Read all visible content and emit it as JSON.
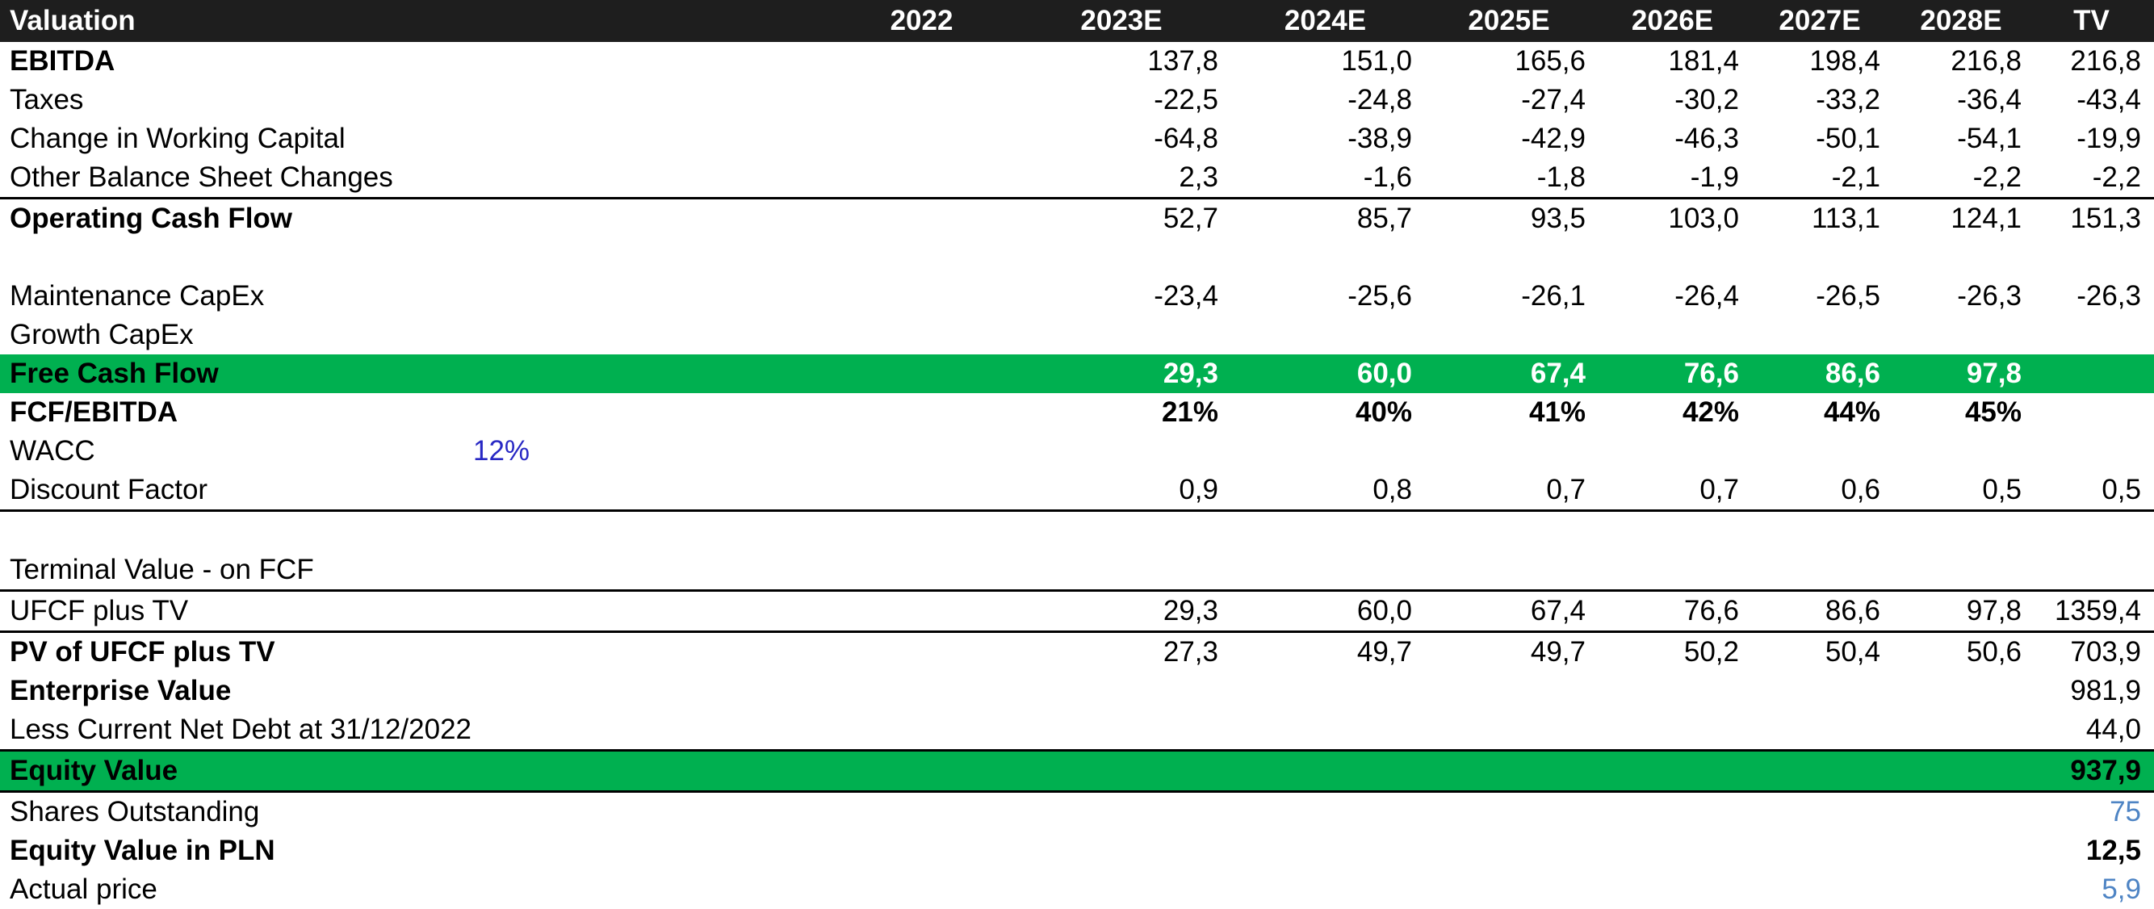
{
  "colors": {
    "header_bg": "#1e1e1e",
    "header_text": "#ffffff",
    "highlight_green": "#00b050",
    "accent_blue_dark": "#2828c4",
    "accent_blue_light": "#4e84c4",
    "text": "#000000"
  },
  "table": {
    "header": {
      "label": "Valuation",
      "columns": [
        "2022",
        "2023E",
        "2024E",
        "2025E",
        "2026E",
        "2027E",
        "2028E",
        "TV"
      ]
    },
    "rows": [
      {
        "key": "ebitda",
        "label": "EBITDA",
        "label_bold": true,
        "values": [
          "",
          "137,8",
          "151,0",
          "165,6",
          "181,4",
          "198,4",
          "216,8",
          "216,8"
        ]
      },
      {
        "key": "taxes",
        "label": "Taxes",
        "values": [
          "",
          "-22,5",
          "-24,8",
          "-27,4",
          "-30,2",
          "-33,2",
          "-36,4",
          "-43,4"
        ]
      },
      {
        "key": "change-in-working-capital",
        "label": "Change in Working Capital",
        "values": [
          "",
          "-64,8",
          "-38,9",
          "-42,9",
          "-46,3",
          "-50,1",
          "-54,1",
          "-19,9"
        ]
      },
      {
        "key": "other-balance-sheet-changes",
        "label": "Other Balance Sheet Changes",
        "border_bottom": true,
        "values": [
          "",
          "2,3",
          "-1,6",
          "-1,8",
          "-1,9",
          "-2,1",
          "-2,2",
          "-2,2"
        ]
      },
      {
        "key": "operating-cash-flow",
        "label": "Operating Cash Flow",
        "label_bold": true,
        "values": [
          "",
          "52,7",
          "85,7",
          "93,5",
          "103,0",
          "113,1",
          "124,1",
          "151,3"
        ]
      },
      {
        "key": "spacer-1",
        "label": "",
        "values": [
          "",
          "",
          "",
          "",
          "",
          "",
          "",
          ""
        ]
      },
      {
        "key": "maintenance-capex",
        "label": "Maintenance CapEx",
        "values": [
          "",
          "-23,4",
          "-25,6",
          "-26,1",
          "-26,4",
          "-26,5",
          "-26,3",
          "-26,3"
        ]
      },
      {
        "key": "growth-capex",
        "label": "Growth CapEx",
        "values": [
          "",
          "",
          "",
          "",
          "",
          "",
          "",
          ""
        ]
      },
      {
        "key": "free-cash-flow",
        "label": "Free Cash Flow",
        "label_bold": true,
        "row_bg": "green",
        "values_bold": true,
        "value_color": "white",
        "values": [
          "",
          "29,3",
          "60,0",
          "67,4",
          "76,6",
          "86,6",
          "97,8",
          ""
        ]
      },
      {
        "key": "fcf-ebitda",
        "label": "FCF/EBITDA",
        "label_bold": true,
        "values_bold": true,
        "values": [
          "",
          "21%",
          "40%",
          "41%",
          "42%",
          "44%",
          "45%",
          ""
        ]
      },
      {
        "key": "wacc",
        "label": "WACC",
        "inline_value": "12%",
        "values": [
          "",
          "",
          "",
          "",
          "",
          "",
          "",
          ""
        ]
      },
      {
        "key": "discount-factor",
        "label": "Discount Factor",
        "border_bottom": true,
        "values": [
          "",
          "0,9",
          "0,8",
          "0,7",
          "0,7",
          "0,6",
          "0,5",
          "0,5"
        ]
      },
      {
        "key": "spacer-2",
        "label": "",
        "values": [
          "",
          "",
          "",
          "",
          "",
          "",
          "",
          ""
        ]
      },
      {
        "key": "terminal-value",
        "label": "Terminal Value - on FCF",
        "border_bottom": true,
        "values": [
          "",
          "",
          "",
          "",
          "",
          "",
          "",
          ""
        ]
      },
      {
        "key": "ufcf-plus-tv",
        "label": "UFCF plus TV",
        "border_bottom": true,
        "values": [
          "",
          "29,3",
          "60,0",
          "67,4",
          "76,6",
          "86,6",
          "97,8",
          "1359,4"
        ]
      },
      {
        "key": "pv-of-ufcf-plus-tv",
        "label": "PV of UFCF plus TV",
        "label_bold": true,
        "values": [
          "",
          "27,3",
          "49,7",
          "49,7",
          "50,2",
          "50,4",
          "50,6",
          "703,9"
        ]
      },
      {
        "key": "enterprise-value",
        "label": "Enterprise Value",
        "label_bold": true,
        "values": [
          "",
          "",
          "",
          "",
          "",
          "",
          "",
          "981,9"
        ]
      },
      {
        "key": "less-current-net-debt",
        "label": "Less Current Net Debt at 31/12/2022",
        "values": [
          "",
          "",
          "",
          "",
          "",
          "",
          "",
          "44,0"
        ]
      },
      {
        "key": "equity-value",
        "label": "Equity Value",
        "label_bold": true,
        "values_bold": true,
        "row_bg": "green",
        "border_top": true,
        "border_bottom": true,
        "values": [
          "",
          "",
          "",
          "",
          "",
          "",
          "",
          "937,9"
        ]
      },
      {
        "key": "shares-outstanding",
        "label": "Shares Outstanding",
        "value_color": "blue",
        "values": [
          "",
          "",
          "",
          "",
          "",
          "",
          "",
          "75"
        ]
      },
      {
        "key": "equity-value-in-pln",
        "label": "Equity Value in PLN",
        "label_bold": true,
        "values_bold": true,
        "values": [
          "",
          "",
          "",
          "",
          "",
          "",
          "",
          "12,5"
        ]
      },
      {
        "key": "actual-price",
        "label": "Actual price",
        "value_color": "blue",
        "values": [
          "",
          "",
          "",
          "",
          "",
          "",
          "",
          "5,9"
        ]
      }
    ]
  }
}
